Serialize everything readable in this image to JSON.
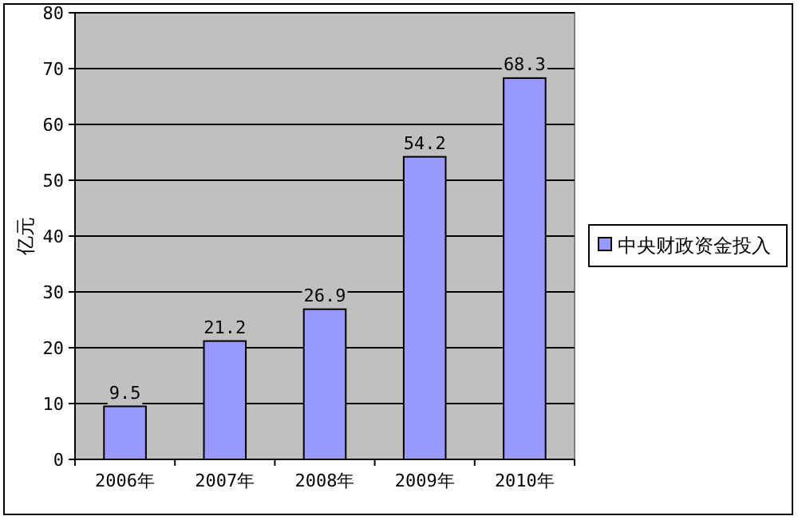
{
  "chart_data": {
    "type": "bar",
    "ylabel": "亿元",
    "categories": [
      "2006年",
      "2007年",
      "2008年",
      "2009年",
      "2010年"
    ],
    "series": [
      {
        "name": "中央财政资金投入",
        "color": "#9999ff",
        "values": [
          9.5,
          21.2,
          26.9,
          54.2,
          68.3
        ]
      }
    ],
    "ylim": [
      0,
      80
    ],
    "yticks": [
      0,
      10,
      20,
      30,
      40,
      50,
      60,
      70,
      80
    ],
    "grid": "y",
    "legend": "right",
    "data_labels": true
  }
}
